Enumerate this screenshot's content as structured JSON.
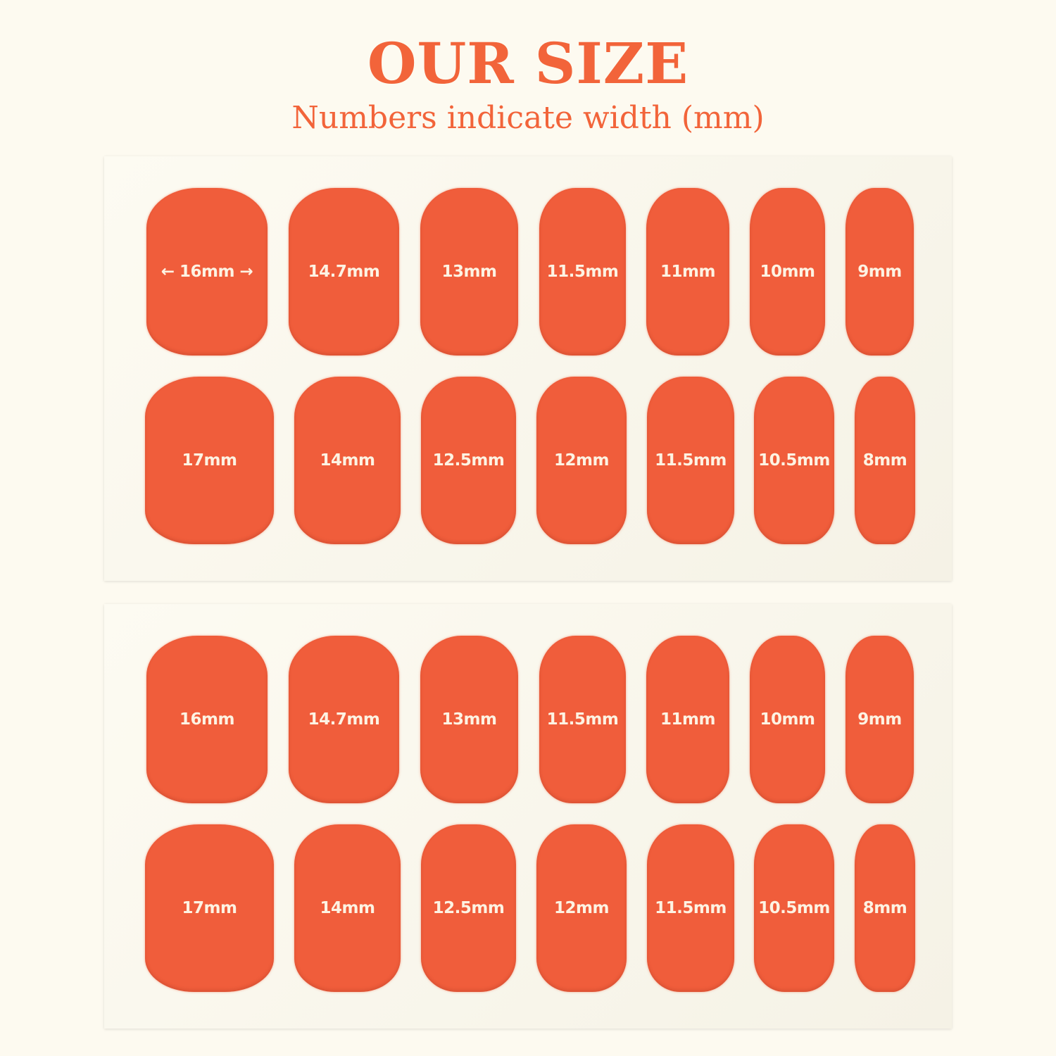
{
  "header": {
    "title": "OUR SIZE",
    "subtitle": "Numbers indicate width (mm)"
  },
  "colors": {
    "background": "#fdfaf0",
    "nail": "#f05d3b",
    "accent": "#f2643a",
    "label": "#fdf3e3"
  },
  "panels": [
    {
      "rows": [
        [
          "← 16mm →",
          "14.7mm",
          "13mm",
          "11.5mm",
          "11mm",
          "10mm",
          "9mm"
        ],
        [
          "17mm",
          "14mm",
          "12.5mm",
          "12mm",
          "11.5mm",
          "10.5mm",
          "8mm"
        ]
      ]
    },
    {
      "rows": [
        [
          "16mm",
          "14.7mm",
          "13mm",
          "11.5mm",
          "11mm",
          "10mm",
          "9mm"
        ],
        [
          "17mm",
          "14mm",
          "12.5mm",
          "12mm",
          "11.5mm",
          "10.5mm",
          "8mm"
        ]
      ]
    }
  ]
}
